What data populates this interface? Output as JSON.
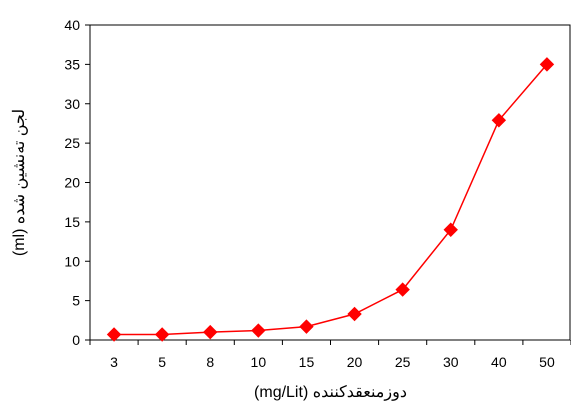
{
  "chart_data": {
    "type": "line",
    "categories": [
      "3",
      "5",
      "8",
      "10",
      "15",
      "20",
      "25",
      "30",
      "40",
      "50"
    ],
    "series": [
      {
        "values": [
          0.7,
          0.7,
          1.0,
          1.2,
          1.7,
          3.3,
          6.4,
          14.0,
          27.9,
          35.0
        ]
      }
    ],
    "xlabel": "دوزمنعقدکننده (mg/Lit)",
    "ylabel": "لجن ته‌نشین شده (ml)",
    "ylim": [
      0,
      40
    ],
    "yticks": [
      0,
      5,
      10,
      15,
      20,
      25,
      30,
      35,
      40
    ],
    "grid": false,
    "legend": "none",
    "colors": {
      "series": "#ff0000",
      "axis": "#000000"
    },
    "marker": "diamond"
  }
}
